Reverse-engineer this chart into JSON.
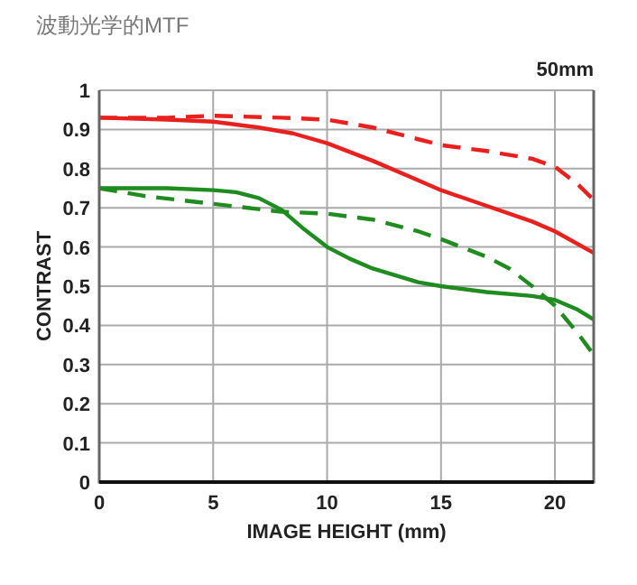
{
  "chart_data": {
    "type": "line",
    "title": "波動光学的MTF",
    "xlabel": "IMAGE HEIGHT (mm)",
    "ylabel": "CONTRAST",
    "annotations": [
      "50mm"
    ],
    "xlim": [
      0,
      21.7
    ],
    "xticks": [
      0,
      5,
      10,
      15,
      20
    ],
    "ylim": [
      0,
      1
    ],
    "yticks": [
      0,
      0.1,
      0.2,
      0.3,
      0.4,
      0.5,
      0.6,
      0.7,
      0.8,
      0.9,
      1
    ],
    "grid": true,
    "series": [
      {
        "color": "#e8201e",
        "line_style": "solid",
        "x": [
          0,
          3,
          5,
          7,
          8.5,
          10,
          12,
          14,
          15,
          17,
          19,
          20,
          21.7
        ],
        "values": [
          0.93,
          0.925,
          0.92,
          0.905,
          0.89,
          0.865,
          0.82,
          0.77,
          0.745,
          0.705,
          0.665,
          0.64,
          0.585
        ]
      },
      {
        "color": "#e8201e",
        "line_style": "dashed",
        "x": [
          0,
          3,
          5,
          8,
          10,
          12,
          14,
          15,
          17,
          19,
          20,
          21,
          21.7
        ],
        "values": [
          0.93,
          0.93,
          0.935,
          0.93,
          0.925,
          0.905,
          0.875,
          0.86,
          0.845,
          0.825,
          0.805,
          0.76,
          0.72
        ]
      },
      {
        "color": "#1e8c1e",
        "line_style": "solid",
        "x": [
          0,
          3,
          5,
          6,
          7,
          8,
          9,
          10,
          11,
          12,
          14,
          15,
          17,
          19,
          20,
          21,
          21.7
        ],
        "values": [
          0.75,
          0.75,
          0.745,
          0.74,
          0.725,
          0.695,
          0.645,
          0.6,
          0.57,
          0.545,
          0.51,
          0.5,
          0.485,
          0.475,
          0.465,
          0.44,
          0.415
        ]
      },
      {
        "color": "#1e8c1e",
        "line_style": "dashed",
        "x": [
          0,
          2,
          5,
          8,
          10,
          12,
          14,
          15,
          17,
          18,
          19,
          20,
          21,
          21.7
        ],
        "values": [
          0.75,
          0.73,
          0.71,
          0.69,
          0.685,
          0.67,
          0.64,
          0.62,
          0.575,
          0.545,
          0.5,
          0.45,
          0.38,
          0.325
        ]
      }
    ]
  }
}
